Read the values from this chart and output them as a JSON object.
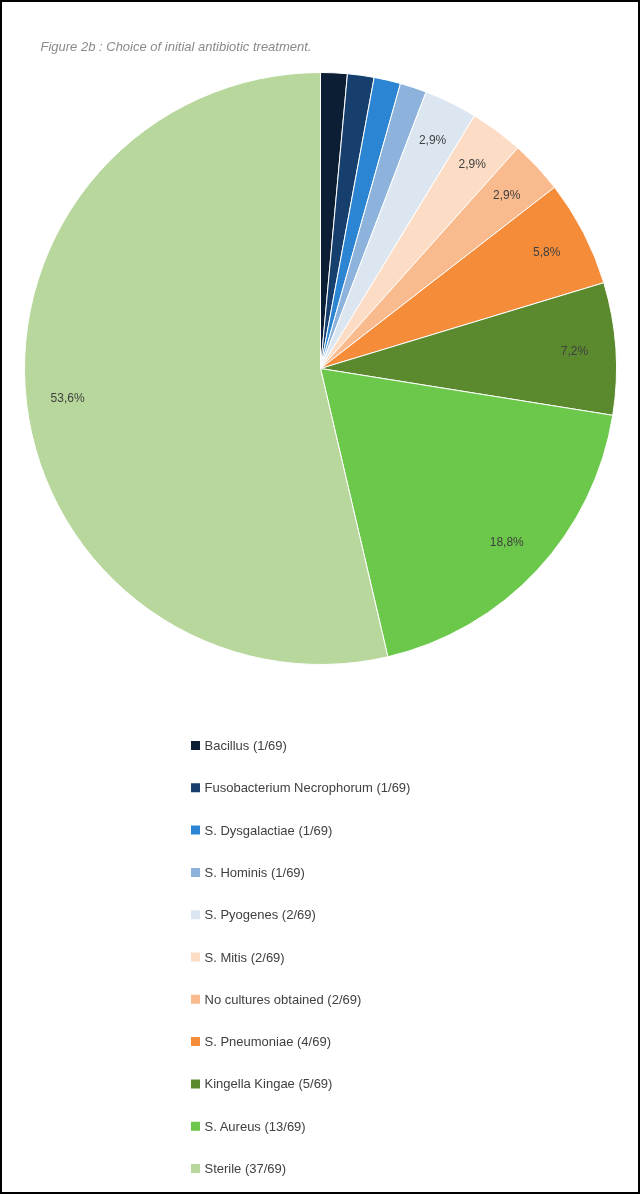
{
  "chart_data": {
    "type": "pie",
    "title": "Figure 2b : Choice of initial antibiotic treatment.",
    "categories": [
      "Bacillus (1/69)",
      "Fusobacterium Necrophorum (1/69)",
      "S. Dysgalactiae (1/69)",
      "S. Hominis (1/69)",
      "S. Pyogenes (2/69)",
      "S. Mitis (2/69)",
      "No cultures obtained (2/69)",
      "S. Pneumoniae (4/69)",
      "Kingella Kingae (5/69)",
      "S. Aureus (13/69)",
      "Sterile (37/69)"
    ],
    "values": [
      1.45,
      1.45,
      1.45,
      1.45,
      2.9,
      2.9,
      2.9,
      5.8,
      7.2,
      18.8,
      53.6
    ],
    "value_labels": [
      null,
      null,
      null,
      null,
      "2,9%",
      "2,9%",
      "2,9%",
      "5,8%",
      "7,2%",
      "18,8%",
      "53,6%"
    ],
    "colors": [
      "#0b1e33",
      "#163f6e",
      "#2b85d2",
      "#8db3dc",
      "#dce6f1",
      "#fcdcc4",
      "#f9bb8e",
      "#f58c3a",
      "#5b8a2e",
      "#6cc84a",
      "#b8d79c"
    ],
    "legend": "bottom"
  }
}
